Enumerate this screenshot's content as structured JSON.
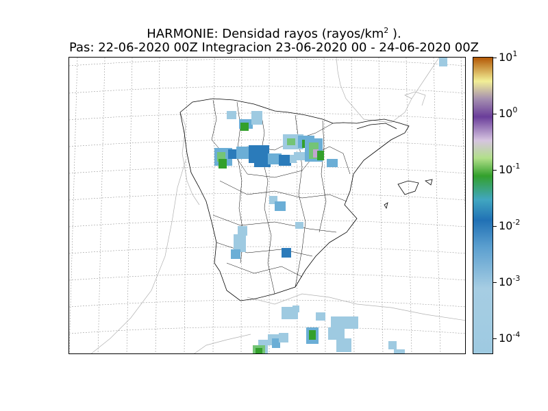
{
  "title": {
    "line1_main": "HARMONIE: Densidad rayos  (rayos/km",
    "line1_sup": "2",
    "line1_end": " ).",
    "line2": "Pas: 22-06-2020 00Z Integracion 23-06-2020 00 - 24-06-2020 00Z"
  },
  "colorbar": {
    "ticks": [
      {
        "base": "10",
        "exp": "1"
      },
      {
        "base": "10",
        "exp": "0"
      },
      {
        "base": "10",
        "exp": "-1"
      },
      {
        "base": "10",
        "exp": "-2"
      },
      {
        "base": "10",
        "exp": "-3"
      },
      {
        "base": "10",
        "exp": "-4"
      }
    ],
    "colors": [
      "#9ecae1",
      "#6baed6",
      "#2b7bba",
      "#74c476",
      "#33a02c",
      "#c2a5cf",
      "#6a3d9a",
      "#f2ef96",
      "#b35806"
    ]
  }
}
